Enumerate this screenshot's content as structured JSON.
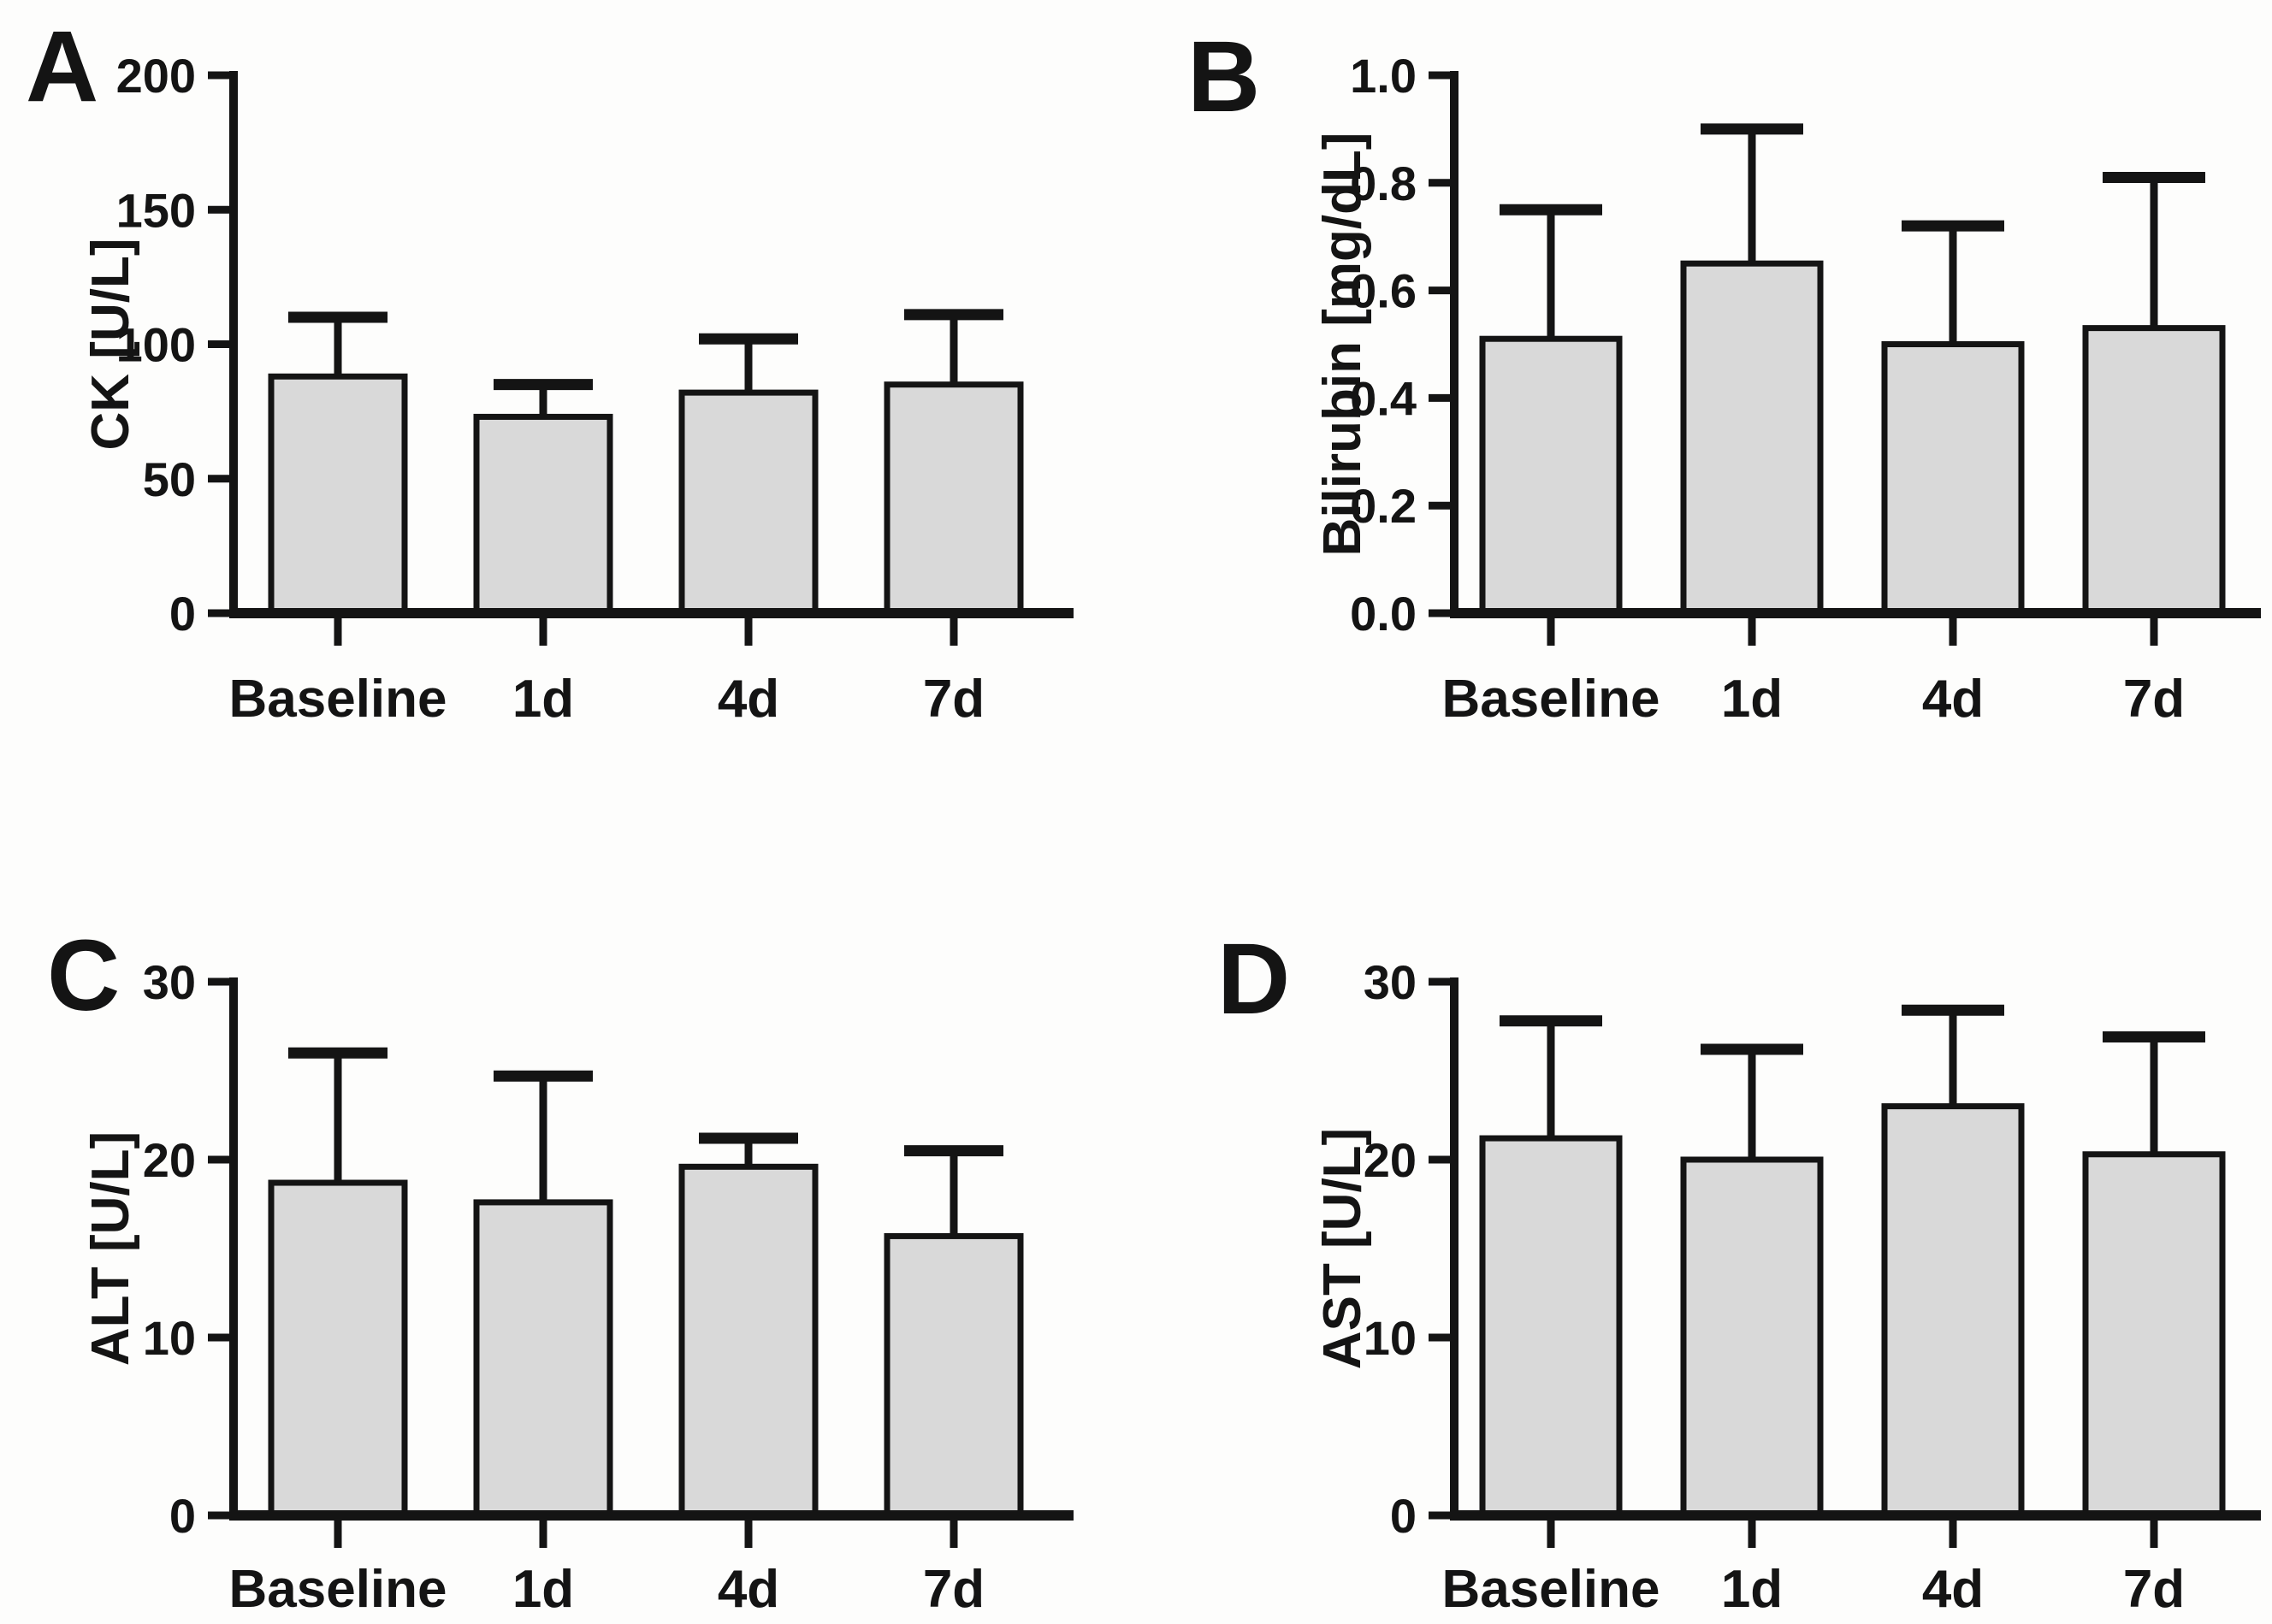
{
  "figure": {
    "title": "",
    "background_color": "#fdfdfc",
    "bar_fill_color": "#d9d9d9",
    "line_color": "#141414",
    "error_bar_style": "upper-only",
    "panel_letters": [
      "A",
      "B",
      "C",
      "D"
    ]
  },
  "chart_data": [
    {
      "panel_letter": "A",
      "type": "bar",
      "title": "",
      "xlabel": "",
      "ylabel": "CK [U/L]",
      "categories": [
        "Baseline",
        "1d",
        "4d",
        "7d"
      ],
      "values": [
        88,
        73,
        82,
        85
      ],
      "sd_upper": [
        22,
        12,
        20,
        26
      ],
      "error_bar_tops": [
        110,
        85,
        102,
        111
      ],
      "ylim": [
        0,
        200
      ],
      "yticks": [
        0,
        50,
        100,
        150,
        200
      ],
      "ytick_labels": [
        "0",
        "50",
        "100",
        "150",
        "200"
      ],
      "grid": false,
      "legend": null
    },
    {
      "panel_letter": "B",
      "type": "bar",
      "title": "",
      "xlabel": "",
      "ylabel": "Bilirubin [mg/dL]",
      "categories": [
        "Baseline",
        "1d",
        "4d",
        "7d"
      ],
      "values": [
        0.51,
        0.65,
        0.5,
        0.53
      ],
      "sd_upper": [
        0.24,
        0.25,
        0.22,
        0.28
      ],
      "error_bar_tops": [
        0.75,
        0.9,
        0.72,
        0.81
      ],
      "ylim": [
        0,
        1.0
      ],
      "yticks": [
        0,
        0.2,
        0.4,
        0.6,
        0.8,
        1.0
      ],
      "ytick_labels": [
        "0.0",
        "0.2",
        "0.4",
        "0.6",
        "0.8",
        "1.0"
      ],
      "grid": false,
      "legend": null
    },
    {
      "panel_letter": "C",
      "type": "bar",
      "title": "",
      "xlabel": "",
      "ylabel": "ALT [U/L]",
      "categories": [
        "Baseline",
        "1d",
        "4d",
        "7d"
      ],
      "values": [
        18.7,
        17.6,
        19.6,
        15.7
      ],
      "sd_upper": [
        7.3,
        7.1,
        1.6,
        4.8
      ],
      "error_bar_tops": [
        26.0,
        24.7,
        21.2,
        20.5
      ],
      "ylim": [
        0,
        30
      ],
      "yticks": [
        0,
        10,
        20,
        30
      ],
      "ytick_labels": [
        "0",
        "10",
        "20",
        "30"
      ],
      "grid": false,
      "legend": null
    },
    {
      "panel_letter": "D",
      "type": "bar",
      "title": "",
      "xlabel": "",
      "ylabel": "AST [U/L]",
      "categories": [
        "Baseline",
        "1d",
        "4d",
        "7d"
      ],
      "values": [
        21.2,
        20.0,
        23.0,
        20.3
      ],
      "sd_upper": [
        6.6,
        6.2,
        5.4,
        6.6
      ],
      "error_bar_tops": [
        27.8,
        26.2,
        28.4,
        26.9
      ],
      "ylim": [
        0,
        30
      ],
      "yticks": [
        0,
        10,
        20,
        30
      ],
      "ytick_labels": [
        "0",
        "10",
        "20",
        "30"
      ],
      "grid": false,
      "legend": null
    }
  ]
}
